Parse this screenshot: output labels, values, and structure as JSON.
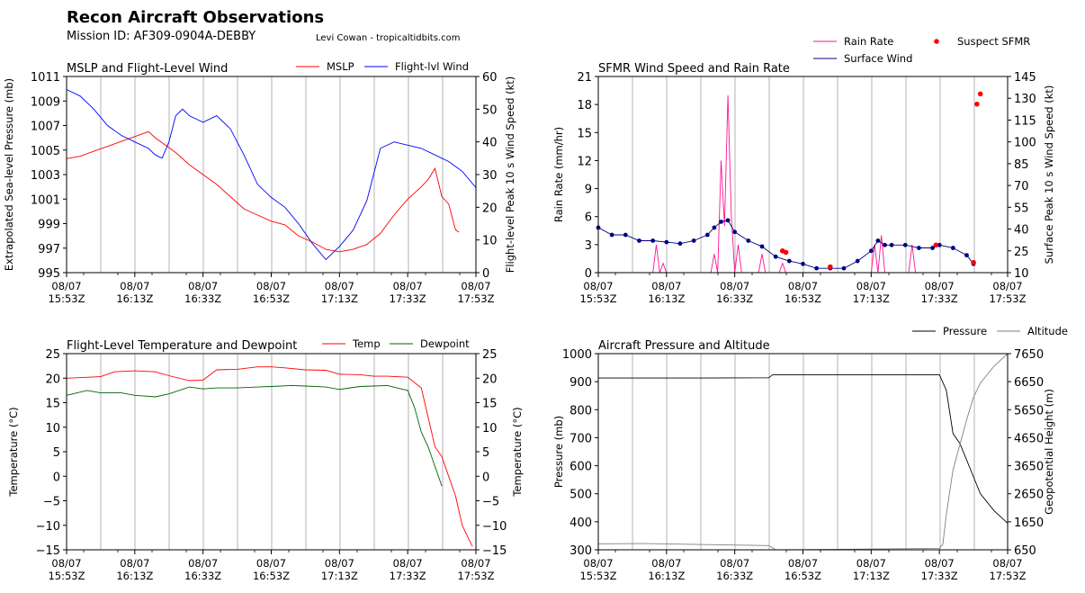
{
  "header": {
    "title": "Recon Aircraft Observations",
    "mission": "Mission ID: AF309-0904A-DEBBY",
    "credit": "Levi Cowan - tropicaltidbits.com"
  },
  "time_ticks": [
    "08/07\n15:53Z",
    "08/07\n16:13Z",
    "08/07\n16:33Z",
    "08/07\n16:53Z",
    "08/07\n17:13Z",
    "08/07\n17:33Z",
    "08/07\n17:53Z"
  ],
  "colors": {
    "mslp": "#ff0000",
    "flight_wind": "#0000ff",
    "rain": "#ff1493",
    "sfmr": "#000080",
    "suspect": "#ff0000",
    "temp": "#ff0000",
    "dewpoint": "#006400",
    "pressure": "#000000",
    "altitude": "#808080",
    "grid": "#a0a0a0"
  },
  "chart_data": [
    {
      "type": "line",
      "title": "MSLP and Flight-Level Wind",
      "xlabel": "",
      "ylabel": "Extrapolated Sea-level Pressure (mb)",
      "ylim": [
        995,
        1011
      ],
      "yticks": [
        995,
        997,
        999,
        1001,
        1003,
        1005,
        1007,
        1009,
        1011
      ],
      "y2label": "Flight-level Peak 10 s Wind Speed (kt)",
      "y2lim": [
        0,
        60
      ],
      "y2ticks": [
        0,
        10,
        20,
        30,
        40,
        50,
        60
      ],
      "xlim": [
        0,
        120
      ],
      "grid": "x",
      "legend": "top-right",
      "series": [
        {
          "name": "MSLP",
          "axis": "left",
          "x": [
            0,
            4,
            8,
            12,
            16,
            20,
            24,
            26,
            28,
            30,
            32,
            36,
            40,
            44,
            48,
            52,
            56,
            60,
            64,
            68,
            72,
            76,
            80,
            84,
            88,
            92,
            96,
            100,
            104,
            106,
            108,
            110,
            112,
            114,
            115
          ],
          "y": [
            1004.3,
            1004.5,
            1004.9,
            1005.3,
            1005.7,
            1006.1,
            1006.5,
            1006.0,
            1005.6,
            1005.2,
            1004.8,
            1003.8,
            1003.0,
            1002.2,
            1001.2,
            1000.2,
            999.7,
            999.2,
            998.9,
            998.0,
            997.5,
            996.9,
            996.7,
            996.9,
            997.3,
            998.2,
            999.7,
            1001.0,
            1002.0,
            1002.6,
            1003.5,
            1001.2,
            1000.6,
            998.5,
            998.3
          ]
        },
        {
          "name": "Flight-lvl Wind",
          "axis": "right",
          "x": [
            0,
            4,
            8,
            12,
            16,
            20,
            24,
            26,
            28,
            30,
            32,
            34,
            36,
            40,
            44,
            48,
            52,
            56,
            60,
            64,
            68,
            72,
            76,
            80,
            84,
            88,
            92,
            96,
            100,
            104,
            108,
            112,
            116,
            120
          ],
          "y": [
            56,
            54,
            50,
            45,
            42,
            40,
            38,
            36,
            35,
            40,
            48,
            50,
            48,
            46,
            48,
            44,
            36,
            27,
            23,
            20,
            15,
            9,
            4,
            8,
            13,
            22,
            38,
            40,
            39,
            38,
            36,
            34,
            31,
            26
          ]
        }
      ]
    },
    {
      "type": "line",
      "title": "SFMR Wind Speed and Rain Rate",
      "xlabel": "",
      "ylabel": "Rain Rate (mm/hr)",
      "ylim": [
        0,
        21
      ],
      "yticks": [
        0,
        3,
        6,
        9,
        12,
        15,
        18,
        21
      ],
      "y2label": "Surface Peak 10 s Wind Speed (kt)",
      "y2lim": [
        10,
        145
      ],
      "y2ticks": [
        10,
        25,
        40,
        55,
        70,
        85,
        100,
        115,
        130,
        145
      ],
      "xlim": [
        0,
        120
      ],
      "grid": "x",
      "legend": "top-right",
      "series": [
        {
          "name": "Rain Rate",
          "axis": "left",
          "x": [
            0,
            16,
            17,
            18,
            19,
            20,
            33,
            34,
            35,
            36,
            37,
            38,
            39,
            40,
            41,
            42,
            47,
            48,
            49,
            53,
            54,
            55,
            80,
            81,
            82,
            83,
            84,
            91,
            92,
            93,
            120
          ],
          "y": [
            0,
            0,
            3,
            0,
            1,
            0,
            0,
            2,
            0,
            12,
            5,
            19,
            6,
            0,
            3,
            0,
            0,
            2,
            0,
            0,
            1,
            0,
            0,
            3,
            0,
            4,
            0,
            0,
            3,
            0,
            0
          ]
        },
        {
          "name": "Surface Wind",
          "axis": "right",
          "x": [
            0,
            4,
            8,
            12,
            16,
            20,
            24,
            28,
            32,
            34,
            36,
            38,
            40,
            44,
            48,
            52,
            56,
            60,
            64,
            68,
            72,
            76,
            80,
            82,
            84,
            86,
            90,
            94,
            98,
            100,
            104,
            108,
            110
          ],
          "y": [
            41,
            36,
            36,
            32,
            32,
            31,
            30,
            32,
            36,
            41,
            45,
            46,
            38,
            32,
            28,
            21,
            18,
            16,
            13,
            13,
            13,
            18,
            25,
            32,
            29,
            29,
            29,
            27,
            27,
            29,
            27,
            22,
            16
          ]
        },
        {
          "name": "Suspect SFMR",
          "axis": "right",
          "x": [
            54,
            55,
            68,
            99,
            110,
            111,
            112
          ],
          "y": [
            25,
            24,
            14,
            29,
            17,
            126,
            133
          ]
        }
      ]
    },
    {
      "type": "line",
      "title": "Flight-Level Temperature and Dewpoint",
      "xlabel": "",
      "ylabel": "Temperature ($^\\circ C$)",
      "y2label": "Temperature ($^\\circ C$)",
      "ylim": [
        -15,
        25
      ],
      "yticks": [
        -15,
        -10,
        -5,
        0,
        5,
        10,
        15,
        20,
        25
      ],
      "xlim": [
        0,
        120
      ],
      "grid": "x",
      "legend": "top-right",
      "series": [
        {
          "name": "Temp",
          "axis": "left",
          "x": [
            0,
            10,
            14,
            20,
            26,
            30,
            36,
            40,
            44,
            50,
            56,
            60,
            64,
            70,
            76,
            80,
            86,
            90,
            94,
            100,
            104,
            106,
            108,
            110,
            112,
            114,
            116,
            118,
            119
          ],
          "y": [
            20,
            20.3,
            21.3,
            21.5,
            21.3,
            20.5,
            19.5,
            19.6,
            21.7,
            21.8,
            22.3,
            22.3,
            22.1,
            21.7,
            21.6,
            20.8,
            20.7,
            20.4,
            20.4,
            20.2,
            18,
            12,
            6,
            4,
            0,
            -4,
            -10,
            -13,
            -14.3
          ]
        },
        {
          "name": "Dewpoint",
          "axis": "left",
          "x": [
            0,
            6,
            10,
            16,
            20,
            26,
            30,
            36,
            40,
            44,
            50,
            56,
            60,
            66,
            70,
            76,
            80,
            86,
            90,
            94,
            100,
            102,
            104,
            106,
            110
          ],
          "y": [
            16.5,
            17.5,
            17,
            17,
            16.5,
            16.2,
            16.8,
            18.2,
            17.8,
            18,
            18,
            18.2,
            18.3,
            18.5,
            18.4,
            18.2,
            17.7,
            18.3,
            18.4,
            18.5,
            17.5,
            14,
            9,
            6,
            -2
          ]
        }
      ]
    },
    {
      "type": "line",
      "title": "Aircraft Pressure and Altitude",
      "xlabel": "",
      "ylabel": "Pressure (mb)",
      "ylim": [
        300,
        1000
      ],
      "yticks": [
        300,
        400,
        500,
        600,
        700,
        800,
        900,
        1000
      ],
      "y2label": "Geopotential Height (m)",
      "y2lim": [
        650,
        7650
      ],
      "y2ticks": [
        650,
        1650,
        2650,
        3650,
        4650,
        5650,
        6650,
        7650
      ],
      "xlim": [
        0,
        120
      ],
      "grid": "x",
      "legend": "top-right",
      "series": [
        {
          "name": "Pressure",
          "axis": "left",
          "x": [
            0,
            30,
            50,
            51,
            52,
            100,
            102,
            104,
            106,
            108,
            110,
            112,
            116,
            120
          ],
          "y": [
            913,
            913,
            914,
            924,
            925,
            925,
            870,
            715,
            680,
            620,
            560,
            500,
            440,
            395
          ]
        },
        {
          "name": "Altitude",
          "axis": "right",
          "x": [
            0,
            14,
            50,
            52,
            100,
            101,
            102,
            104,
            106,
            108,
            110,
            112,
            116,
            120
          ],
          "y": [
            866,
            873,
            800,
            650,
            700,
            850,
            1900,
            3500,
            4400,
            5300,
            6100,
            6600,
            7200,
            7650
          ]
        }
      ]
    }
  ]
}
